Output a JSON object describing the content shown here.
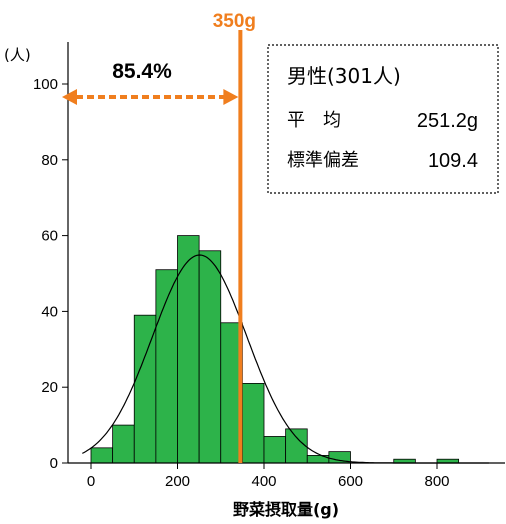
{
  "chart_data": {
    "type": "bar",
    "title": "",
    "xlabel": "野菜摂取量(g)",
    "ylabel": "(人)",
    "xlim": [
      -20,
      920
    ],
    "ylim": [
      0,
      110
    ],
    "xticks": [
      0,
      200,
      400,
      600,
      800
    ],
    "yticks": [
      0,
      20,
      40,
      60,
      80,
      100
    ],
    "bin_width": 50,
    "bins": [
      {
        "x0": 0,
        "x1": 50,
        "value": 4
      },
      {
        "x0": 50,
        "x1": 100,
        "value": 10
      },
      {
        "x0": 100,
        "x1": 150,
        "value": 39
      },
      {
        "x0": 150,
        "x1": 200,
        "value": 51
      },
      {
        "x0": 200,
        "x1": 250,
        "value": 60
      },
      {
        "x0": 250,
        "x1": 300,
        "value": 56
      },
      {
        "x0": 300,
        "x1": 350,
        "value": 37
      },
      {
        "x0": 350,
        "x1": 400,
        "value": 21
      },
      {
        "x0": 400,
        "x1": 450,
        "value": 7
      },
      {
        "x0": 450,
        "x1": 500,
        "value": 9
      },
      {
        "x0": 500,
        "x1": 550,
        "value": 2
      },
      {
        "x0": 550,
        "x1": 600,
        "value": 3
      },
      {
        "x0": 600,
        "x1": 650,
        "value": 0
      },
      {
        "x0": 650,
        "x1": 700,
        "value": 0
      },
      {
        "x0": 700,
        "x1": 750,
        "value": 1
      },
      {
        "x0": 750,
        "x1": 800,
        "value": 0
      },
      {
        "x0": 800,
        "x1": 850,
        "value": 1
      }
    ],
    "normal_curve": {
      "mean": 251.2,
      "sd": 109.4,
      "n": 301
    },
    "reference_line": {
      "x": 350,
      "label": "350g"
    },
    "annotation_percent": "85.4%",
    "stats": {
      "group": "男性(301人)",
      "mean_label": "平　均",
      "mean_value": "251.2g",
      "sd_label": "標準偏差",
      "sd_value": "109.4"
    }
  },
  "colors": {
    "bar": "#2db34a",
    "bar_edge": "#000000",
    "reference": "#f07e1e",
    "curve": "#000000"
  }
}
